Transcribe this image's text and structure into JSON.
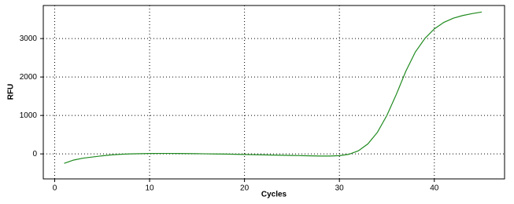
{
  "chart_data": {
    "type": "line",
    "x_label": "Cycles",
    "y_label": "RFU",
    "x": [
      1,
      2,
      3,
      4,
      5,
      6,
      7,
      8,
      9,
      10,
      11,
      12,
      13,
      14,
      15,
      16,
      17,
      18,
      19,
      20,
      21,
      22,
      23,
      24,
      25,
      26,
      27,
      28,
      29,
      30,
      31,
      32,
      33,
      34,
      35,
      36,
      37,
      38,
      39,
      40,
      41,
      42,
      43,
      44,
      45
    ],
    "series": [
      {
        "color": "#1f8a1f",
        "values": [
          -245,
          -160,
          -110,
          -80,
          -50,
          -25,
          -10,
          0,
          5,
          10,
          12,
          12,
          10,
          8,
          5,
          2,
          -2,
          -5,
          -10,
          -15,
          -20,
          -25,
          -30,
          -35,
          -40,
          -45,
          -50,
          -55,
          -55,
          -45,
          -10,
          80,
          260,
          560,
          1000,
          1550,
          2150,
          2650,
          3000,
          3250,
          3420,
          3530,
          3600,
          3650,
          3690
        ]
      }
    ],
    "xlim": [
      -1.2,
      47.4
    ],
    "xticks": [
      0,
      10,
      20,
      30,
      40
    ],
    "ylim": [
      -650,
      3860
    ],
    "yticks": [
      0,
      1000,
      2000,
      3000
    ],
    "grid": true
  }
}
